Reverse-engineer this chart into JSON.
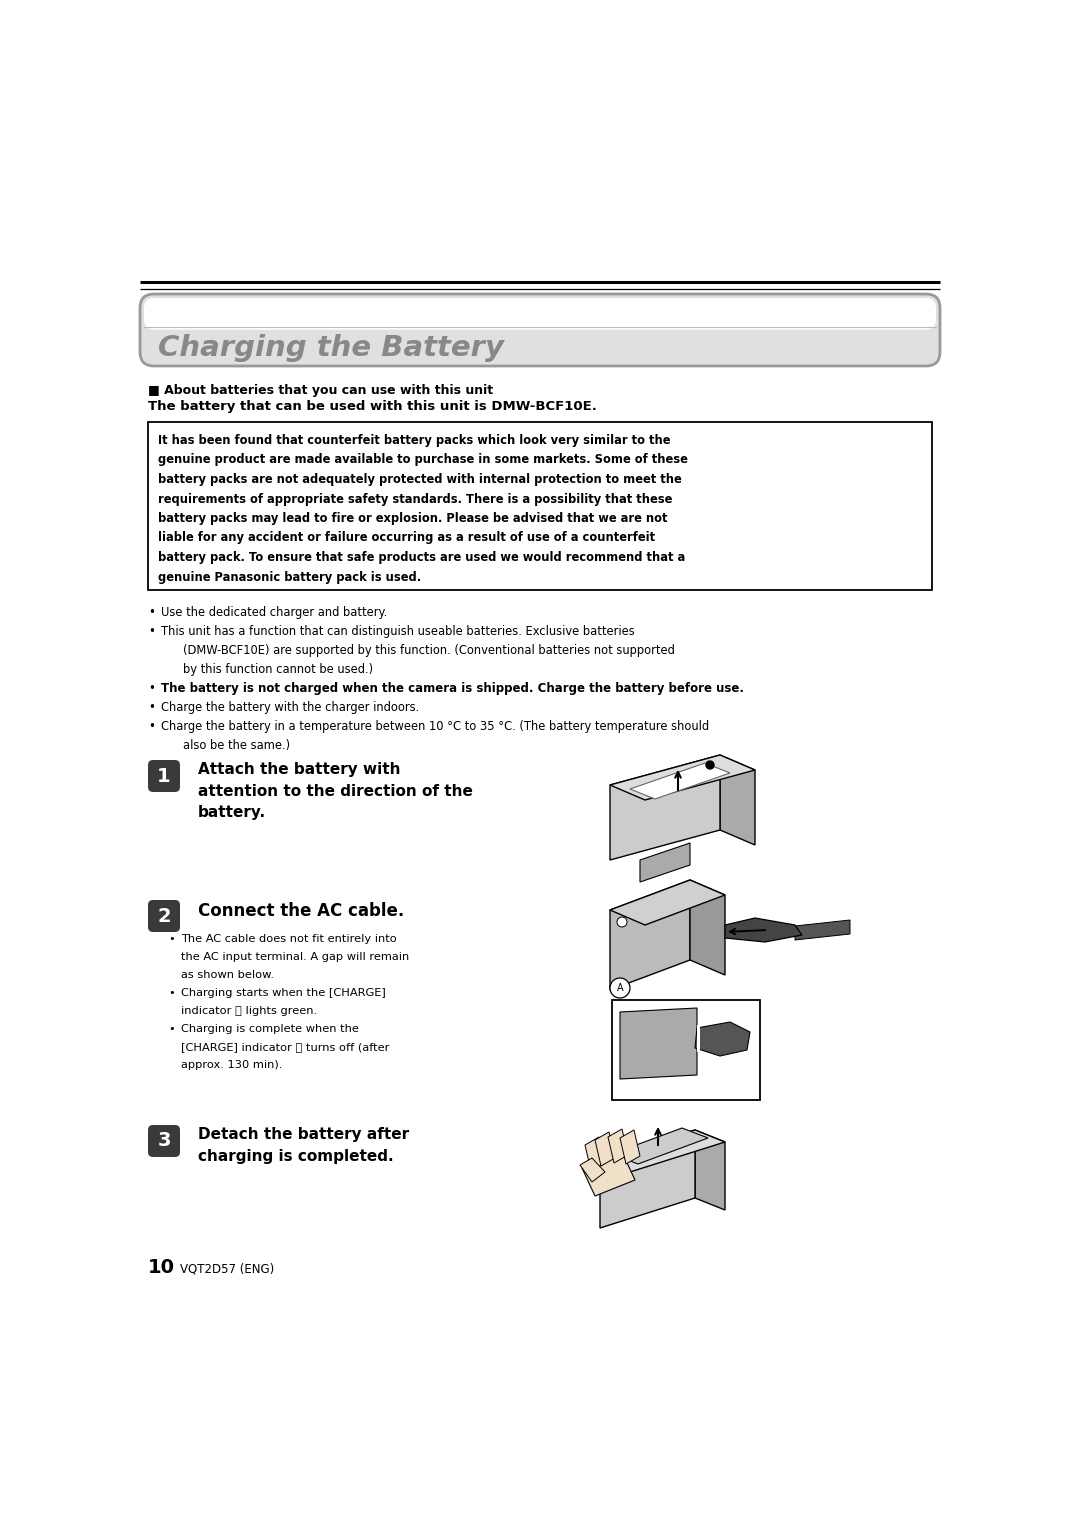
{
  "bg_color": "#ffffff",
  "title": "Charging the Battery",
  "title_color": "#888888",
  "section_header": "■ About batteries that you can use with this unit",
  "section_sub": "The battery that can be used with this unit is DMW-BCF10E.",
  "warning_lines": [
    "It has been found that counterfeit battery packs which look very similar to the",
    "genuine product are made available to purchase in some markets. Some of these",
    "battery packs are not adequately protected with internal protection to meet the",
    "requirements of appropriate safety standards. There is a possibility that these",
    "battery packs may lead to fire or explosion. Please be advised that we are not",
    "liable for any accident or failure occurring as a result of use of a counterfeit",
    "battery pack. To ensure that safe products are used we would recommend that a",
    "genuine Panasonic battery pack is used."
  ],
  "bullet_entries": [
    {
      "text": "Use the dedicated charger and battery.",
      "bullet": true,
      "indent": false,
      "bold": false,
      "size": 8.3
    },
    {
      "text": "This unit has a function that can distinguish useable batteries. Exclusive batteries",
      "bullet": true,
      "indent": false,
      "bold": false,
      "size": 8.3
    },
    {
      "text": "(DMW-BCF10E) are supported by this function. (Conventional batteries not supported",
      "bullet": false,
      "indent": true,
      "bold": false,
      "size": 8.3
    },
    {
      "text": "by this function cannot be used.)",
      "bullet": false,
      "indent": true,
      "bold": false,
      "size": 8.3
    },
    {
      "text": "The battery is not charged when the camera is shipped. Charge the battery before use.",
      "bullet": true,
      "indent": false,
      "bold": true,
      "size": 8.5
    },
    {
      "text": "Charge the battery with the charger indoors.",
      "bullet": true,
      "indent": false,
      "bold": false,
      "size": 8.3
    },
    {
      "text": "Charge the battery in a temperature between 10 °C to 35 °C. (The battery temperature should",
      "bullet": true,
      "indent": false,
      "bold": false,
      "size": 8.3
    },
    {
      "text": "also be the same.)",
      "bullet": false,
      "indent": true,
      "bold": false,
      "size": 8.3
    }
  ],
  "step1_text": "Attach the battery with\nattention to the direction of the\nbattery.",
  "step2_title": "Connect the AC cable.",
  "step2_bullets": [
    {
      "text": "The AC cable does not fit entirely into",
      "bullet": true
    },
    {
      "text": "the AC input terminal. A gap will remain",
      "bullet": false
    },
    {
      "text": "as shown below.",
      "bullet": false
    },
    {
      "text": "Charging starts when the [CHARGE]",
      "bullet": true
    },
    {
      "text": "indicator Ⓐ lights green.",
      "bullet": false
    },
    {
      "text": "Charging is complete when the",
      "bullet": true
    },
    {
      "text": "[CHARGE] indicator Ⓐ turns off (after",
      "bullet": false
    },
    {
      "text": "approx. 130 min).",
      "bullet": false
    }
  ],
  "step3_text": "Detach the battery after\ncharging is completed.",
  "footer_page": "10",
  "footer_code": "VQT2D57 (ENG)"
}
